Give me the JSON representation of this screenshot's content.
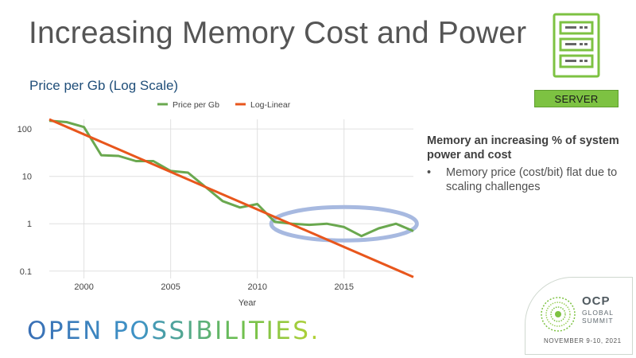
{
  "slide": {
    "title": "Increasing Memory Cost and Power",
    "server_label": "SERVER",
    "side_heading": "Memory an increasing % of system power and cost",
    "side_bullets": [
      "Memory price (cost/bit) flat due to scaling challenges"
    ],
    "footer_tagline": "OPEN POSSIBILITIES.",
    "logo": {
      "name": "OCP",
      "line1": "GLOBAL",
      "line2": "SUMMIT",
      "date": "NOVEMBER 9-10, 2021"
    }
  },
  "chart_data": {
    "type": "line",
    "title": "Price per Gb (Log Scale)",
    "xlabel": "Year",
    "ylabel": "",
    "yscale": "log",
    "xlim": [
      1998,
      2019
    ],
    "ylim": [
      0.07,
      160
    ],
    "x_ticks": [
      2000,
      2005,
      2010,
      2015
    ],
    "y_ticks": [
      {
        "value": 100,
        "label": "100"
      },
      {
        "value": 10,
        "label": "10"
      },
      {
        "value": 1,
        "label": "1"
      },
      {
        "value": 0.1,
        "label": "0.1"
      }
    ],
    "legend_position": "top-center",
    "series": [
      {
        "name": "Price per Gb",
        "color": "#6aa84f",
        "x": [
          1998,
          1999,
          2000,
          2001,
          2002,
          2003,
          2004,
          2005,
          2006,
          2007,
          2008,
          2009,
          2010,
          2011,
          2012,
          2013,
          2014,
          2015,
          2016,
          2017,
          2018,
          2019
        ],
        "values": [
          150,
          140,
          110,
          28,
          27,
          21,
          21,
          13,
          12,
          6,
          3,
          2.2,
          2.6,
          1.1,
          1.0,
          0.95,
          1.0,
          0.85,
          0.55,
          0.8,
          1.0,
          0.7
        ]
      },
      {
        "name": "Log-Linear",
        "color": "#e8561c",
        "x": [
          1998,
          2019
        ],
        "values": [
          160,
          0.075
        ]
      }
    ],
    "annotation": {
      "type": "ellipse",
      "color": "#a7b9e0",
      "x_range": [
        2010.8,
        2019.2
      ],
      "y_center": 1.0
    }
  }
}
